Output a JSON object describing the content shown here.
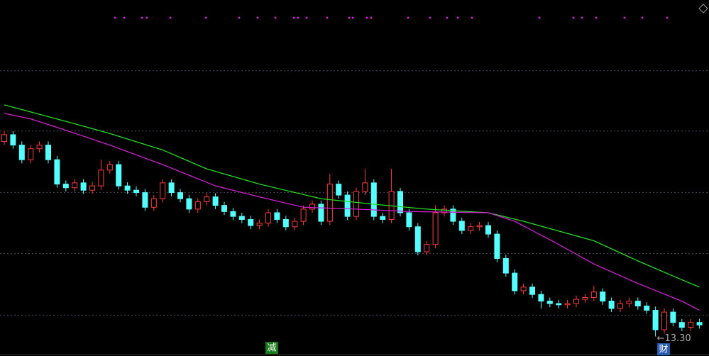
{
  "chart_data": {
    "type": "candlestick",
    "ylim": [
      12.98,
      18.82
    ],
    "grid_levels": [
      13.65,
      14.66,
      15.66,
      16.67,
      17.66
    ],
    "up_color": "#ff3c3c",
    "down_color": "#54ffff",
    "open": [
      16.5,
      16.61,
      16.44,
      16.2,
      16.38,
      16.44,
      16.2,
      15.8,
      15.74,
      15.82,
      15.7,
      15.77,
      16.03,
      16.12,
      15.77,
      15.7,
      15.66,
      15.42,
      15.56,
      15.82,
      15.66,
      15.56,
      15.39,
      15.51,
      15.59,
      15.45,
      15.35,
      15.27,
      15.22,
      15.12,
      15.16,
      15.33,
      15.22,
      15.1,
      15.19,
      15.39,
      15.47,
      15.19,
      15.8,
      15.62,
      15.27,
      15.68,
      15.82,
      15.27,
      15.22,
      15.68,
      15.33,
      15.1,
      14.69,
      14.81,
      15.33,
      15.39,
      15.19,
      15.04,
      15.1,
      15.12,
      14.98,
      14.58,
      14.34,
      14.05,
      14.11,
      13.99,
      13.88,
      13.84,
      13.82,
      13.84,
      13.91,
      13.94,
      14.03,
      13.88,
      13.76,
      13.84,
      13.88,
      13.8,
      13.73,
      13.41,
      13.7,
      13.53,
      13.45,
      13.53
    ],
    "high": [
      16.67,
      16.67,
      16.5,
      16.44,
      16.5,
      16.5,
      16.26,
      15.86,
      15.88,
      15.88,
      15.83,
      16.2,
      16.18,
      16.18,
      15.83,
      15.76,
      15.72,
      15.62,
      15.88,
      15.88,
      15.72,
      15.62,
      15.57,
      15.65,
      15.65,
      15.51,
      15.41,
      15.33,
      15.28,
      15.22,
      15.39,
      15.39,
      15.28,
      15.25,
      15.45,
      15.53,
      15.53,
      15.97,
      15.86,
      15.68,
      15.74,
      16.05,
      15.88,
      15.33,
      16.05,
      15.74,
      15.39,
      15.16,
      14.87,
      15.45,
      15.45,
      15.45,
      15.25,
      15.16,
      15.18,
      15.18,
      15.04,
      14.64,
      14.4,
      14.17,
      14.17,
      14.05,
      13.94,
      13.9,
      13.9,
      13.97,
      14.0,
      14.13,
      14.09,
      13.94,
      13.9,
      13.94,
      13.94,
      13.86,
      13.79,
      13.76,
      13.76,
      13.59,
      13.59,
      13.59
    ],
    "low": [
      16.44,
      16.38,
      16.14,
      16.14,
      16.32,
      16.14,
      15.74,
      15.68,
      15.68,
      15.64,
      15.64,
      15.71,
      15.97,
      15.71,
      15.64,
      15.6,
      15.36,
      15.36,
      15.5,
      15.6,
      15.5,
      15.33,
      15.33,
      15.45,
      15.39,
      15.29,
      15.21,
      15.16,
      15.06,
      15.06,
      15.1,
      15.16,
      15.04,
      15.04,
      15.13,
      15.33,
      15.13,
      15.13,
      15.56,
      15.21,
      15.21,
      15.62,
      15.21,
      15.16,
      15.16,
      15.27,
      15.04,
      14.63,
      14.63,
      14.75,
      15.27,
      15.13,
      14.98,
      14.98,
      15.04,
      14.92,
      14.52,
      14.28,
      13.99,
      13.99,
      13.93,
      13.76,
      13.78,
      13.76,
      13.76,
      13.78,
      13.85,
      13.88,
      13.82,
      13.7,
      13.7,
      13.78,
      13.74,
      13.67,
      13.3,
      13.35,
      13.47,
      13.39,
      13.39,
      13.43
    ],
    "close": [
      16.61,
      16.44,
      16.2,
      16.38,
      16.44,
      16.2,
      15.8,
      15.74,
      15.82,
      15.7,
      15.77,
      16.03,
      16.12,
      15.77,
      15.7,
      15.66,
      15.42,
      15.56,
      15.82,
      15.66,
      15.56,
      15.39,
      15.51,
      15.59,
      15.45,
      15.35,
      15.27,
      15.22,
      15.12,
      15.16,
      15.33,
      15.22,
      15.1,
      15.19,
      15.39,
      15.47,
      15.19,
      15.8,
      15.62,
      15.27,
      15.68,
      15.82,
      15.27,
      15.22,
      15.68,
      15.33,
      15.1,
      14.69,
      14.81,
      15.33,
      15.39,
      15.19,
      15.04,
      15.1,
      15.12,
      14.98,
      14.58,
      14.34,
      14.05,
      14.11,
      13.99,
      13.88,
      13.84,
      13.82,
      13.84,
      13.91,
      13.94,
      14.03,
      13.88,
      13.76,
      13.84,
      13.88,
      13.8,
      13.73,
      13.41,
      13.7,
      13.53,
      13.45,
      13.53,
      13.49
    ],
    "ma_lines": [
      {
        "color": "#22dd22",
        "x": [
          0,
          8,
          12,
          18,
          23,
          29,
          36,
          42,
          48,
          55,
          59,
          67,
          72,
          77,
          79
        ],
        "values": [
          17.1,
          16.79,
          16.63,
          16.36,
          16.05,
          15.8,
          15.56,
          15.47,
          15.39,
          15.33,
          15.19,
          14.87,
          14.54,
          14.23,
          14.11
        ]
      },
      {
        "color": "#d020d0",
        "x": [
          0,
          3,
          6,
          12,
          18,
          24,
          29,
          34,
          40,
          46,
          55,
          58,
          63,
          67,
          72,
          77,
          79
        ],
        "values": [
          16.96,
          16.87,
          16.73,
          16.44,
          16.12,
          15.77,
          15.59,
          15.42,
          15.39,
          15.35,
          15.33,
          15.19,
          14.81,
          14.49,
          14.17,
          13.88,
          13.73
        ]
      }
    ],
    "min_label": {
      "value": 13.3,
      "label": "←13.30"
    },
    "annotations": [
      "减",
      "财"
    ]
  }
}
